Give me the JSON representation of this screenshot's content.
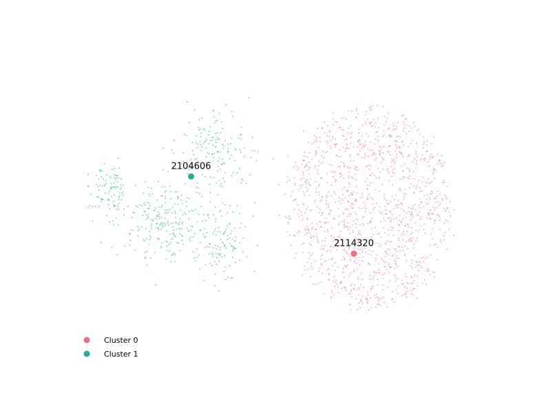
{
  "chart_data": {
    "type": "scatter",
    "title": "",
    "xlabel": "",
    "ylabel": "",
    "axes_visible": false,
    "grid": false,
    "legend_position": "bottom-left",
    "xlim": [
      0,
      100
    ],
    "ylim": [
      0,
      100
    ],
    "series": [
      {
        "name": "Cluster 0",
        "color": "#f07080",
        "approx_point_count": 1300,
        "regions": [
          {
            "cx": 72,
            "cy": 50,
            "rx": 21,
            "ry": 35,
            "weight": 1.0
          }
        ]
      },
      {
        "name": "Cluster 1",
        "color": "#2aaa9a",
        "approx_point_count": 620,
        "regions": [
          {
            "cx": 5,
            "cy": 56,
            "rx": 5,
            "ry": 8,
            "weight": 0.16
          },
          {
            "cx": 20,
            "cy": 45,
            "rx": 10,
            "ry": 12,
            "weight": 0.38
          },
          {
            "cx": 32,
            "cy": 70,
            "rx": 9,
            "ry": 12,
            "weight": 0.26
          },
          {
            "cx": 35,
            "cy": 40,
            "rx": 6,
            "ry": 14,
            "weight": 0.2
          }
        ]
      }
    ],
    "highlighted_points": [
      {
        "label": "2104606",
        "series": "Cluster 1",
        "x": 26.5,
        "y": 61.1
      },
      {
        "label": "2114320",
        "series": "Cluster 0",
        "x": 68.4,
        "y": 34.4
      }
    ]
  },
  "legend": {
    "items": [
      {
        "label": "Cluster 0",
        "color": "#f07080"
      },
      {
        "label": "Cluster 1",
        "color": "#2aaa9a"
      }
    ]
  }
}
